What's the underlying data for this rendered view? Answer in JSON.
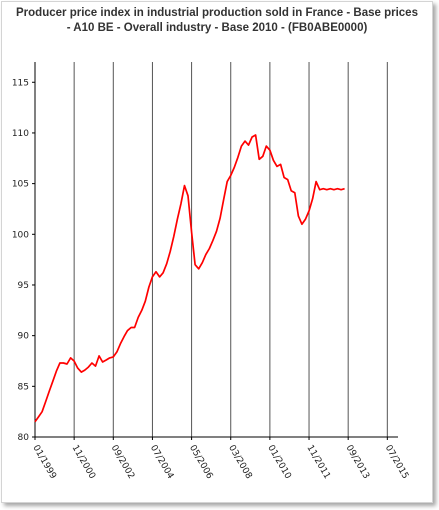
{
  "title_lines": [
    "Producer price index in industrial production sold in France - Base prices",
    "- A10 BE - Overall industry - Base 2010 - (FB0ABE0000)"
  ],
  "colors": {
    "series": "#ff0000",
    "gridline": "#555555",
    "axis": "#000000",
    "background": "#ffffff"
  },
  "chart_data": {
    "type": "line",
    "title": "Producer price index in industrial production sold in France - Base prices - A10 BE - Overall industry - Base 2010 - (FB0ABE0000)",
    "xlabel": "",
    "ylabel": "",
    "ylim": [
      80,
      117
    ],
    "yticks": [
      80,
      85,
      90,
      95,
      100,
      105,
      110,
      115
    ],
    "xtick_labels": [
      "01/1999",
      "11/2000",
      "09/2002",
      "07/2004",
      "05/2006",
      "03/2008",
      "01/2010",
      "11/2011",
      "09/2013",
      "07/2015"
    ],
    "grid": "vertical",
    "legend": "none",
    "series": [
      {
        "x": [
          0,
          2,
          4,
          6,
          8,
          10,
          12,
          14,
          16,
          18,
          20,
          22,
          24,
          26,
          28,
          30,
          32,
          34,
          36,
          38,
          40,
          42,
          44,
          46,
          48,
          50,
          52,
          54,
          56,
          58,
          60,
          62,
          64,
          66,
          68,
          70,
          72,
          74,
          76,
          78,
          80,
          82,
          84,
          86,
          88,
          90,
          92,
          94,
          96,
          98,
          100,
          102,
          104,
          106,
          108,
          110,
          112,
          114,
          116,
          118,
          120,
          122,
          124,
          126,
          128,
          130,
          132,
          134,
          136,
          138,
          140,
          142,
          144,
          146,
          148,
          150,
          152,
          154,
          156,
          158,
          160,
          162,
          164,
          166,
          168,
          170,
          172,
          174,
          176,
          178,
          180,
          182,
          184,
          186,
          188,
          190,
          192,
          194,
          196,
          198,
          200,
          202,
          204
        ],
        "values": [
          81.5,
          82.0,
          82.5,
          83.5,
          84.5,
          85.5,
          86.5,
          87.3,
          87.3,
          87.2,
          87.8,
          87.5,
          86.8,
          86.4,
          86.6,
          86.9,
          87.3,
          87.0,
          88.0,
          87.4,
          87.6,
          87.8,
          87.9,
          88.4,
          89.2,
          89.9,
          90.5,
          90.8,
          90.8,
          91.8,
          92.5,
          93.4,
          94.8,
          95.8,
          96.3,
          95.8,
          96.2,
          97.1,
          98.3,
          99.8,
          101.5,
          103.0,
          104.8,
          103.8,
          100.2,
          97.0,
          96.6,
          97.2,
          98.0,
          98.6,
          99.4,
          100.3,
          101.6,
          103.4,
          105.2,
          105.8,
          106.6,
          107.6,
          108.7,
          109.2,
          108.8,
          109.6,
          109.8,
          107.4,
          107.7,
          108.7,
          108.3,
          107.3,
          106.7,
          106.9,
          105.6,
          105.4,
          104.3,
          104.1,
          101.8,
          101.0,
          101.5,
          102.3,
          103.5,
          105.2,
          104.4,
          104.5,
          104.4,
          104.5,
          104.4,
          104.5,
          104.4,
          104.5,
          104.4,
          104.5,
          104.4,
          104.5,
          104.4,
          104.5,
          104.4,
          104.5,
          104.4,
          104.5,
          104.4,
          104.5,
          104.4,
          104.5,
          104.4
        ]
      }
    ]
  }
}
